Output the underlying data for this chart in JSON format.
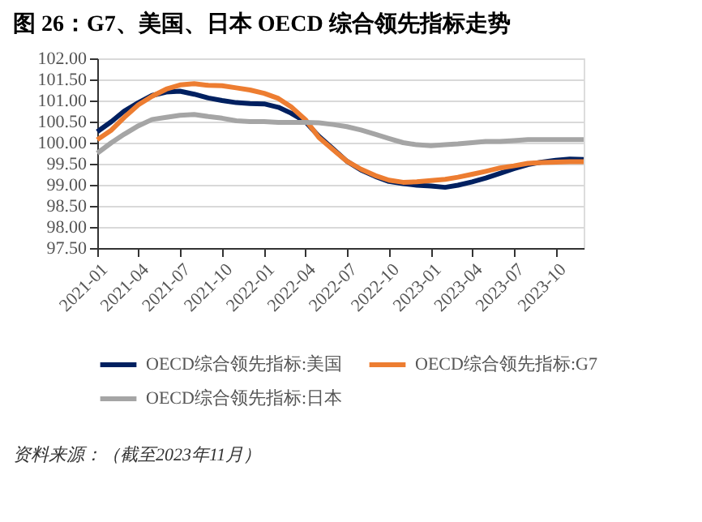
{
  "chart_data": {
    "type": "line",
    "title": "图 26：G7、美国、日本 OECD 综合领先指标走势",
    "x": [
      "2021-01",
      "2021-02",
      "2021-03",
      "2021-04",
      "2021-05",
      "2021-06",
      "2021-07",
      "2021-08",
      "2021-09",
      "2021-10",
      "2021-11",
      "2021-12",
      "2022-01",
      "2022-02",
      "2022-03",
      "2022-04",
      "2022-05",
      "2022-06",
      "2022-07",
      "2022-08",
      "2022-09",
      "2022-10",
      "2022-11",
      "2022-12",
      "2023-01",
      "2023-02",
      "2023-03",
      "2023-04",
      "2023-05",
      "2023-06",
      "2023-07",
      "2023-08",
      "2023-09",
      "2023-10",
      "2023-11",
      "2023-12"
    ],
    "series": [
      {
        "name": "OECD综合领先指标:美国",
        "color": "#002060",
        "values": [
          100.26,
          100.5,
          100.75,
          100.95,
          101.12,
          101.2,
          101.22,
          101.15,
          101.06,
          101.0,
          100.95,
          100.93,
          100.92,
          100.84,
          100.7,
          100.5,
          100.15,
          99.85,
          99.56,
          99.35,
          99.2,
          99.08,
          99.03,
          98.99,
          98.97,
          98.94,
          98.99,
          99.07,
          99.16,
          99.27,
          99.38,
          99.48,
          99.54,
          99.58,
          99.61,
          99.6
        ]
      },
      {
        "name": "OECD综合领先指标:G7",
        "color": "#ed7d31",
        "values": [
          100.07,
          100.3,
          100.6,
          100.9,
          101.1,
          101.27,
          101.37,
          101.4,
          101.36,
          101.35,
          101.3,
          101.25,
          101.17,
          101.05,
          100.85,
          100.55,
          100.12,
          99.83,
          99.56,
          99.37,
          99.22,
          99.11,
          99.06,
          99.07,
          99.1,
          99.13,
          99.18,
          99.25,
          99.32,
          99.4,
          99.45,
          99.51,
          99.53,
          99.54,
          99.55,
          99.55
        ]
      },
      {
        "name": "OECD综合领先指标:日本",
        "color": "#a5a5a5",
        "values": [
          99.75,
          100.0,
          100.2,
          100.4,
          100.55,
          100.6,
          100.65,
          100.67,
          100.62,
          100.58,
          100.52,
          100.5,
          100.5,
          100.48,
          100.48,
          100.48,
          100.47,
          100.43,
          100.38,
          100.3,
          100.2,
          100.1,
          100.0,
          99.95,
          99.93,
          99.95,
          99.97,
          100.0,
          100.03,
          100.03,
          100.05,
          100.07,
          100.07,
          100.07,
          100.07,
          100.07
        ]
      }
    ],
    "xlim": [
      "2021-01",
      "2023-12"
    ],
    "xticks": [
      "2021-01",
      "2021-04",
      "2021-07",
      "2021-10",
      "2022-01",
      "2022-04",
      "2022-07",
      "2022-10",
      "2023-01",
      "2023-04",
      "2023-07",
      "2023-10"
    ],
    "ylim": [
      97.5,
      102
    ],
    "yticks": [
      {
        "value": 97.5,
        "label": "97.50"
      },
      {
        "value": 98,
        "label": "98.00"
      },
      {
        "value": 98.5,
        "label": "98.50"
      },
      {
        "value": 99,
        "label": "99.00"
      },
      {
        "value": 99.5,
        "label": "99.50"
      },
      {
        "value": 100,
        "label": "100.00"
      },
      {
        "value": 100.5,
        "label": "100.50"
      },
      {
        "value": 101,
        "label": "101.00"
      },
      {
        "value": 101.5,
        "label": "101.50"
      },
      {
        "value": 102,
        "label": "102.00"
      }
    ],
    "grid": "y",
    "legend": "bottom",
    "marker": "none",
    "line_style": "solid",
    "annotations": [
      "资料来源：（截至2023年11月）"
    ]
  }
}
